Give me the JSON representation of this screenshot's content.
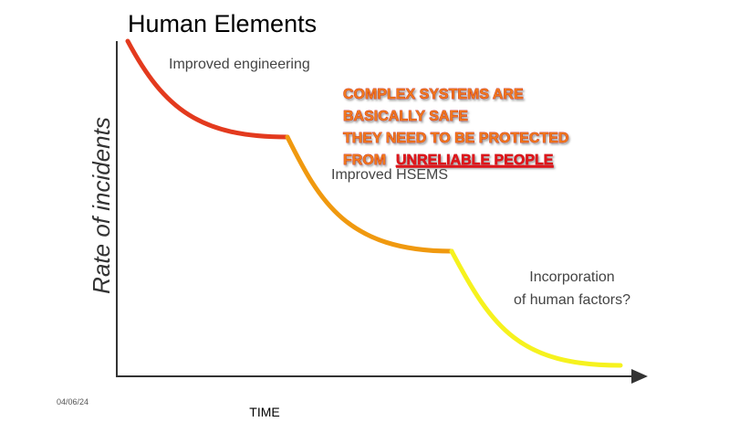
{
  "header": {
    "title": "Human Elements",
    "date": "04/06/24"
  },
  "axes": {
    "y_label": "Rate of incidents",
    "x_label": "TIME"
  },
  "stages": [
    {
      "label": "Improved engineering"
    },
    {
      "label": "Improved HSEMS"
    },
    {
      "label_lines": [
        "Incorporation",
        "of human factors?"
      ]
    }
  ],
  "callout": {
    "lines": [
      "COMPLEX SYSTEMS ARE",
      "BASICALLY SAFE",
      "THEY NEED TO BE PROTECTED"
    ],
    "last_line": {
      "prefix": "FROM",
      "emphasis": "UNRELIABLE PEOPLE"
    }
  }
}
